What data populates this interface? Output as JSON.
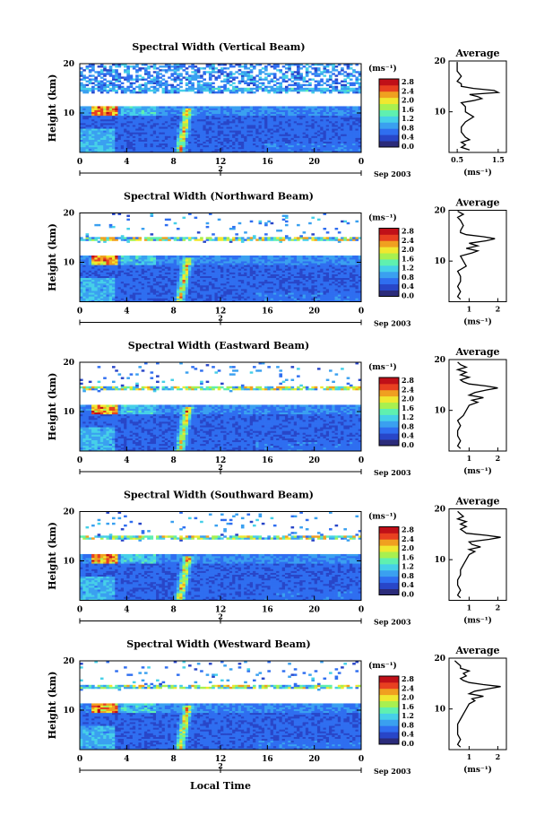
{
  "common": {
    "ylabel": "Height (km)",
    "xticks": [
      "0",
      "4",
      "8",
      "12",
      "16",
      "20",
      "0"
    ],
    "yticks": [
      "20",
      "10"
    ],
    "day_label": "2",
    "date_label": "Sep 2003",
    "unit_label": "(ms⁻¹)",
    "avg_title": "Average",
    "xlabel_bottom": "Local Time"
  },
  "colors": {
    "colormap": [
      "#2b2b7a",
      "#2846c8",
      "#2f6ef0",
      "#3aa0f0",
      "#46d0e8",
      "#5ff0b0",
      "#a8f050",
      "#f0e830",
      "#f0a020",
      "#e84020",
      "#c01018"
    ]
  },
  "chart_data": [
    {
      "type": "heatmap",
      "title": "Spectral Width (Vertical Beam)",
      "xlabel": "",
      "ylabel": "Height (km)",
      "xlim_hours": [
        0,
        24
      ],
      "ylim_km": [
        2,
        20
      ],
      "colorbar_label": "(ms⁻¹)",
      "colorbar_ticks": [
        "2.8",
        "2.4",
        "2.0",
        "1.6",
        "1.2",
        "0.8",
        "0.4",
        "0.0"
      ],
      "average_profile": {
        "title": "Average",
        "xlabel": "(ms⁻¹)",
        "xticks": [
          "0.5",
          "1.5"
        ],
        "xlim": [
          0.3,
          1.7
        ],
        "yticks": [
          "20",
          "10"
        ],
        "ylim": [
          2,
          20
        ],
        "height_km": [
          2.5,
          3.0,
          3.5,
          4.0,
          4.5,
          5.0,
          6.0,
          7.0,
          8.0,
          9.0,
          10.0,
          11.0,
          11.8,
          12.2,
          12.6,
          13.0,
          13.4,
          13.8,
          14.2,
          14.6,
          15.0,
          15.5,
          16.0,
          17.0,
          18.0,
          19.0,
          19.8
        ],
        "width_ms": [
          0.8,
          0.6,
          0.7,
          0.6,
          0.8,
          0.7,
          0.6,
          0.6,
          0.7,
          0.9,
          0.7,
          0.7,
          0.6,
          0.9,
          1.1,
          1.0,
          0.8,
          1.5,
          1.4,
          0.9,
          0.6,
          0.6,
          0.5,
          0.6,
          0.5,
          0.5,
          0.5
        ]
      }
    },
    {
      "type": "heatmap",
      "title": "Spectral Width (Northward Beam)",
      "xlabel": "",
      "ylabel": "Height (km)",
      "xlim_hours": [
        0,
        24
      ],
      "ylim_km": [
        2,
        20
      ],
      "colorbar_label": "(ms⁻¹)",
      "colorbar_ticks": [
        "2.8",
        "2.4",
        "2.0",
        "1.6",
        "1.2",
        "0.8",
        "0.4",
        "0.0"
      ],
      "average_profile": {
        "title": "Average",
        "xlabel": "(ms⁻¹)",
        "xticks": [
          "1",
          "2"
        ],
        "xlim": [
          0.3,
          2.3
        ],
        "yticks": [
          "20",
          "10"
        ],
        "ylim": [
          2,
          20
        ],
        "height_km": [
          2.5,
          3.0,
          4.0,
          5.0,
          6.0,
          7.0,
          8.0,
          9.0,
          10.0,
          11.0,
          11.6,
          12.0,
          12.5,
          13.0,
          13.5,
          14.0,
          14.4,
          14.8,
          15.2,
          15.6,
          16.0,
          17.0,
          18.0,
          18.6,
          19.2,
          19.8
        ],
        "width_ms": [
          0.7,
          0.6,
          0.7,
          0.6,
          0.7,
          0.7,
          0.6,
          0.9,
          0.8,
          0.7,
          1.1,
          1.3,
          0.9,
          1.3,
          1.0,
          1.6,
          1.9,
          1.5,
          0.9,
          0.7,
          0.7,
          0.8,
          0.7,
          0.6,
          0.8,
          0.6
        ]
      }
    },
    {
      "type": "heatmap",
      "title": "Spectral Width (Eastward Beam)",
      "xlabel": "",
      "ylabel": "Height (km)",
      "xlim_hours": [
        0,
        24
      ],
      "ylim_km": [
        2,
        20
      ],
      "colorbar_label": "(ms⁻¹)",
      "colorbar_ticks": [
        "2.8",
        "2.4",
        "2.0",
        "1.6",
        "1.2",
        "0.8",
        "0.4",
        "0.0"
      ],
      "average_profile": {
        "title": "Average",
        "xlabel": "(ms⁻¹)",
        "xticks": [
          "1",
          "2"
        ],
        "xlim": [
          0.3,
          2.3
        ],
        "yticks": [
          "20",
          "10"
        ],
        "ylim": [
          2,
          20
        ],
        "height_km": [
          2.5,
          3.0,
          4.0,
          5.0,
          6.0,
          7.0,
          8.0,
          9.0,
          10.0,
          11.0,
          11.6,
          12.0,
          12.5,
          13.0,
          13.5,
          14.0,
          14.4,
          14.8,
          15.2,
          15.6,
          16.0,
          16.5,
          17.0,
          17.5,
          18.0,
          18.5,
          19.0,
          19.5
        ],
        "width_ms": [
          0.7,
          0.6,
          0.7,
          0.6,
          0.6,
          0.7,
          0.6,
          0.8,
          0.9,
          1.0,
          1.3,
          1.1,
          1.5,
          1.0,
          1.2,
          1.6,
          2.0,
          1.6,
          1.0,
          0.8,
          0.7,
          1.0,
          0.7,
          0.9,
          0.6,
          0.9,
          0.7,
          0.6
        ]
      }
    },
    {
      "type": "heatmap",
      "title": "Spectral Width (Southward Beam)",
      "xlabel": "",
      "ylabel": "Height (km)",
      "xlim_hours": [
        0,
        24
      ],
      "ylim_km": [
        2,
        20
      ],
      "colorbar_label": "(ms⁻¹)",
      "colorbar_ticks": [
        "2.8",
        "2.4",
        "2.0",
        "1.6",
        "1.2",
        "0.8",
        "0.4",
        "0.0"
      ],
      "average_profile": {
        "title": "Average",
        "xlabel": "(ms⁻¹)",
        "xticks": [
          "1",
          "2"
        ],
        "xlim": [
          0.3,
          2.3
        ],
        "yticks": [
          "20",
          "10"
        ],
        "ylim": [
          2,
          20
        ],
        "height_km": [
          2.5,
          3.0,
          4.0,
          5.0,
          6.0,
          7.0,
          8.0,
          9.0,
          10.0,
          11.0,
          11.6,
          12.0,
          12.5,
          13.0,
          13.5,
          14.0,
          14.4,
          14.8,
          15.2,
          15.6,
          16.0,
          16.5,
          17.0,
          17.5,
          18.0,
          18.5,
          19.0,
          19.5
        ],
        "width_ms": [
          0.7,
          0.6,
          0.7,
          0.6,
          0.6,
          0.7,
          0.7,
          0.8,
          0.9,
          1.0,
          1.2,
          1.0,
          1.4,
          1.1,
          1.0,
          1.7,
          2.1,
          1.6,
          0.9,
          0.8,
          0.7,
          0.9,
          0.7,
          0.9,
          0.6,
          0.8,
          0.7,
          0.6
        ]
      }
    },
    {
      "type": "heatmap",
      "title": "Spectral Width (Westward Beam)",
      "xlabel": "Local Time",
      "ylabel": "Height (km)",
      "xlim_hours": [
        0,
        24
      ],
      "ylim_km": [
        2,
        20
      ],
      "colorbar_label": "(ms⁻¹)",
      "colorbar_ticks": [
        "2.8",
        "2.4",
        "2.0",
        "1.6",
        "1.2",
        "0.8",
        "0.4",
        "0.0"
      ],
      "average_profile": {
        "title": "Average",
        "xlabel": "(ms⁻¹)",
        "xticks": [
          "1",
          "2"
        ],
        "xlim": [
          0.3,
          2.3
        ],
        "yticks": [
          "20",
          "10"
        ],
        "ylim": [
          2,
          20
        ],
        "height_km": [
          2.5,
          3.0,
          4.0,
          5.0,
          6.0,
          7.0,
          8.0,
          9.0,
          10.0,
          11.0,
          11.6,
          12.0,
          12.5,
          13.0,
          13.5,
          14.0,
          14.4,
          14.8,
          15.2,
          15.6,
          16.0,
          16.5,
          17.0,
          17.5,
          18.0,
          18.5,
          19.0,
          19.5
        ],
        "width_ms": [
          0.7,
          0.6,
          0.7,
          0.6,
          0.6,
          0.6,
          0.7,
          0.8,
          0.9,
          1.0,
          1.2,
          1.1,
          1.5,
          1.0,
          1.2,
          1.7,
          2.1,
          1.5,
          1.0,
          0.8,
          0.7,
          0.9,
          0.8,
          1.0,
          0.7,
          0.7,
          0.6,
          0.5
        ]
      }
    }
  ]
}
